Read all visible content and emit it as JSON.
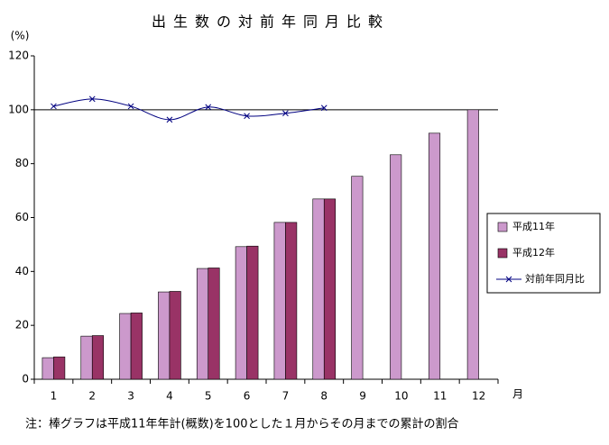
{
  "chart_data": {
    "type": "bar",
    "title": "出生数の対前年同月比較",
    "y_unit": "(%)",
    "x_unit": "月",
    "note": "注：棒グラフは平成11年年計(概数)を100とした１月からその月までの累計の割合",
    "categories": [
      "1",
      "2",
      "3",
      "4",
      "5",
      "6",
      "7",
      "8",
      "9",
      "10",
      "11",
      "12"
    ],
    "series": [
      {
        "name": "平成11年",
        "color": "#cc99cc",
        "type": "bar",
        "values": [
          8.0,
          16.0,
          24.4,
          32.4,
          41.1,
          49.2,
          58.2,
          66.9,
          75.3,
          83.3,
          91.3,
          100
        ]
      },
      {
        "name": "平成12年",
        "color": "#993366",
        "type": "bar",
        "values": [
          8.3,
          16.2,
          24.6,
          32.6,
          41.3,
          49.4,
          58.2,
          66.9,
          null,
          null,
          null,
          null
        ]
      },
      {
        "name": "対前年同月比",
        "color": "#000080",
        "type": "line",
        "values": [
          101.3,
          104.0,
          101.3,
          96.3,
          101.0,
          97.7,
          98.7,
          100.7,
          null,
          null,
          null,
          null
        ]
      }
    ],
    "reference_line": 100,
    "ylim": [
      0,
      120
    ],
    "yticks": [
      0,
      20,
      40,
      60,
      80,
      100,
      120
    ],
    "legend": "right"
  }
}
